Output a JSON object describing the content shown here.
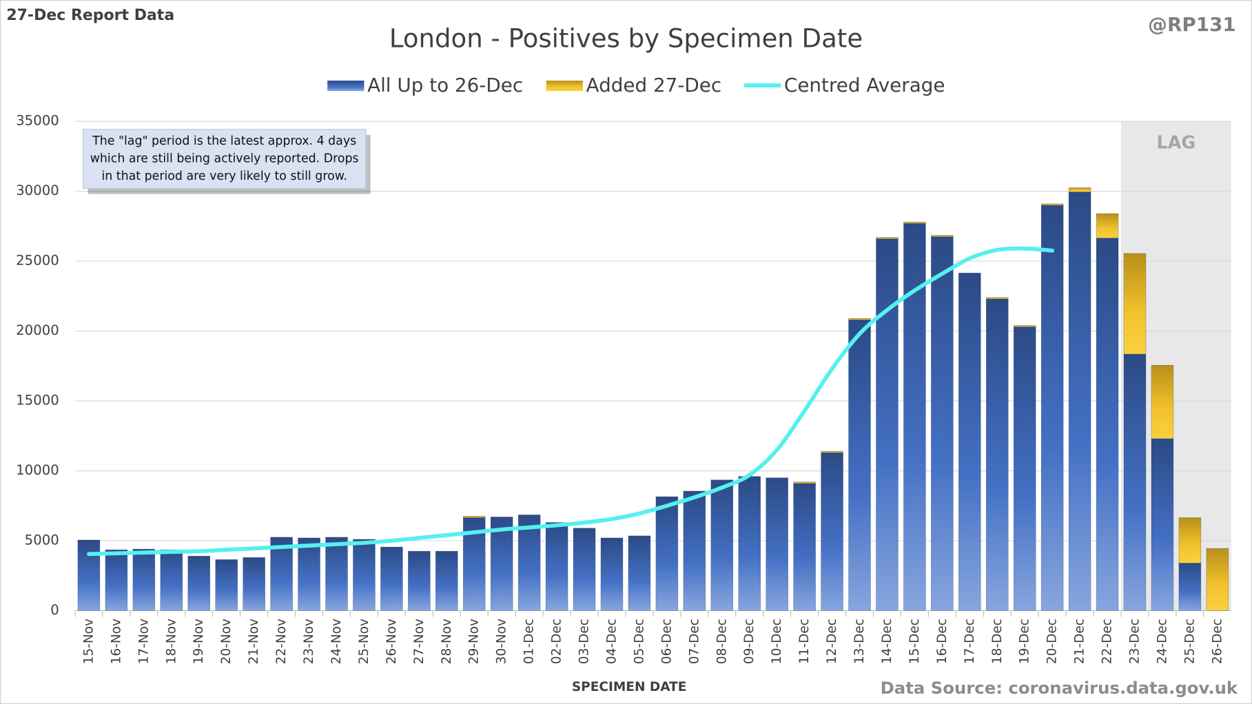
{
  "chart_data": {
    "type": "stacked-bar-line",
    "title": "London - Positives by Specimen Date",
    "corner_note": "27-Dec Report Data",
    "credit": "@RP131",
    "source": "Data Source: coronavirus.data.gov.uk",
    "x_label": "SPECIMEN DATE",
    "lag_label": "LAG",
    "annotation": [
      "The \"lag\" period is the latest approx. 4 days",
      "which are still being actively reported.  Drops",
      "in that period are very likely to still grow."
    ],
    "categories": [
      "15-Nov",
      "16-Nov",
      "17-Nov",
      "18-Nov",
      "19-Nov",
      "20-Nov",
      "21-Nov",
      "22-Nov",
      "23-Nov",
      "24-Nov",
      "25-Nov",
      "26-Nov",
      "27-Nov",
      "28-Nov",
      "29-Nov",
      "30-Nov",
      "01-Dec",
      "02-Dec",
      "03-Dec",
      "04-Dec",
      "05-Dec",
      "06-Dec",
      "07-Dec",
      "08-Dec",
      "09-Dec",
      "10-Dec",
      "11-Dec",
      "12-Dec",
      "13-Dec",
      "14-Dec",
      "15-Dec",
      "16-Dec",
      "17-Dec",
      "18-Dec",
      "19-Dec",
      "20-Dec",
      "21-Dec",
      "22-Dec",
      "23-Dec",
      "24-Dec",
      "25-Dec",
      "26-Dec"
    ],
    "series": [
      {
        "name": "All Up to 26-Dec",
        "color": "#3a5fa8",
        "kind": "bar",
        "values": [
          5050,
          4350,
          4400,
          4350,
          3900,
          3650,
          3800,
          5250,
          5200,
          5250,
          5100,
          4550,
          4250,
          4250,
          6650,
          6700,
          6850,
          6300,
          5900,
          5200,
          5350,
          8150,
          8550,
          9350,
          9600,
          9500,
          9100,
          11300,
          20800,
          26600,
          27700,
          26750,
          24150,
          22300,
          20300,
          29000,
          29950,
          26650,
          18350,
          12300,
          3400,
          0
        ]
      },
      {
        "name": "Added 27-Dec",
        "color": "#e8b420",
        "kind": "bar",
        "values": [
          0,
          0,
          0,
          0,
          0,
          0,
          0,
          0,
          0,
          0,
          0,
          0,
          0,
          0,
          100,
          0,
          0,
          0,
          0,
          0,
          0,
          0,
          0,
          0,
          0,
          0,
          100,
          100,
          100,
          100,
          100,
          100,
          0,
          100,
          100,
          100,
          300,
          1750,
          7200,
          5250,
          3250,
          4450
        ]
      },
      {
        "name": "Centred Average",
        "color": "#55f0f0",
        "kind": "line",
        "values": [
          4050,
          4100,
          4150,
          4200,
          4250,
          4350,
          4450,
          4550,
          4650,
          4750,
          4850,
          5000,
          5200,
          5400,
          5600,
          5800,
          5950,
          6100,
          6300,
          6550,
          6950,
          7500,
          8100,
          8800,
          9700,
          11500,
          14300,
          17300,
          19800,
          21500,
          22900,
          24100,
          25200,
          25800,
          25900,
          25750,
          null,
          null,
          null,
          null,
          null,
          null
        ]
      }
    ],
    "ylim": [
      0,
      35000
    ],
    "yticks": [
      0,
      5000,
      10000,
      15000,
      20000,
      25000,
      30000,
      35000
    ],
    "grid": true
  }
}
